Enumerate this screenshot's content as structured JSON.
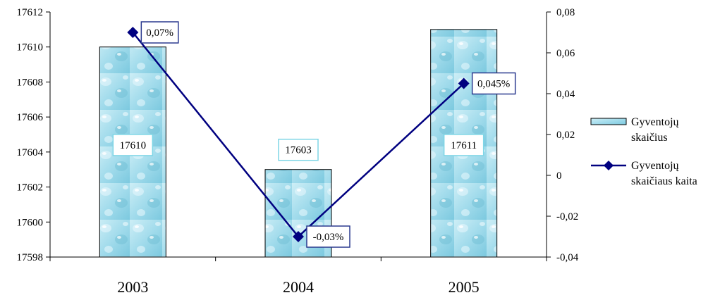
{
  "chart_data": {
    "type": "bar",
    "categories": [
      "2003",
      "2004",
      "2005"
    ],
    "series": [
      {
        "name": "Gyventojų skaičius",
        "kind": "bar",
        "axis": "left",
        "values": [
          17610,
          17603,
          17611
        ],
        "labels": [
          "17610",
          "17603",
          "17611"
        ],
        "color": "#a8dfee"
      },
      {
        "name": "Gyventojų skaičiaus kaita",
        "kind": "line",
        "axis": "right",
        "values": [
          0.07,
          -0.03,
          0.045
        ],
        "labels": [
          "0,07%",
          "-0,03%",
          "0,045%"
        ],
        "color": "#000080"
      }
    ],
    "y_left": {
      "min": 17598,
      "max": 17612,
      "ticks": [
        "17598",
        "17600",
        "17602",
        "17604",
        "17606",
        "17608",
        "17610",
        "17612"
      ]
    },
    "y_right": {
      "min": -0.04,
      "max": 0.08,
      "ticks": [
        "-0,04",
        "-0,02",
        "0",
        "0,02",
        "0,04",
        "0,06",
        "0,08"
      ]
    },
    "legend": {
      "placement": "right",
      "entries": [
        "Gyventojų skaičius",
        "Gyventojų skaičiaus kaita"
      ],
      "lines": [
        [
          "Gyventojų",
          "skaičius"
        ],
        [
          "Gyventojų",
          "skaičiaus kaita"
        ]
      ]
    },
    "grid": false
  }
}
